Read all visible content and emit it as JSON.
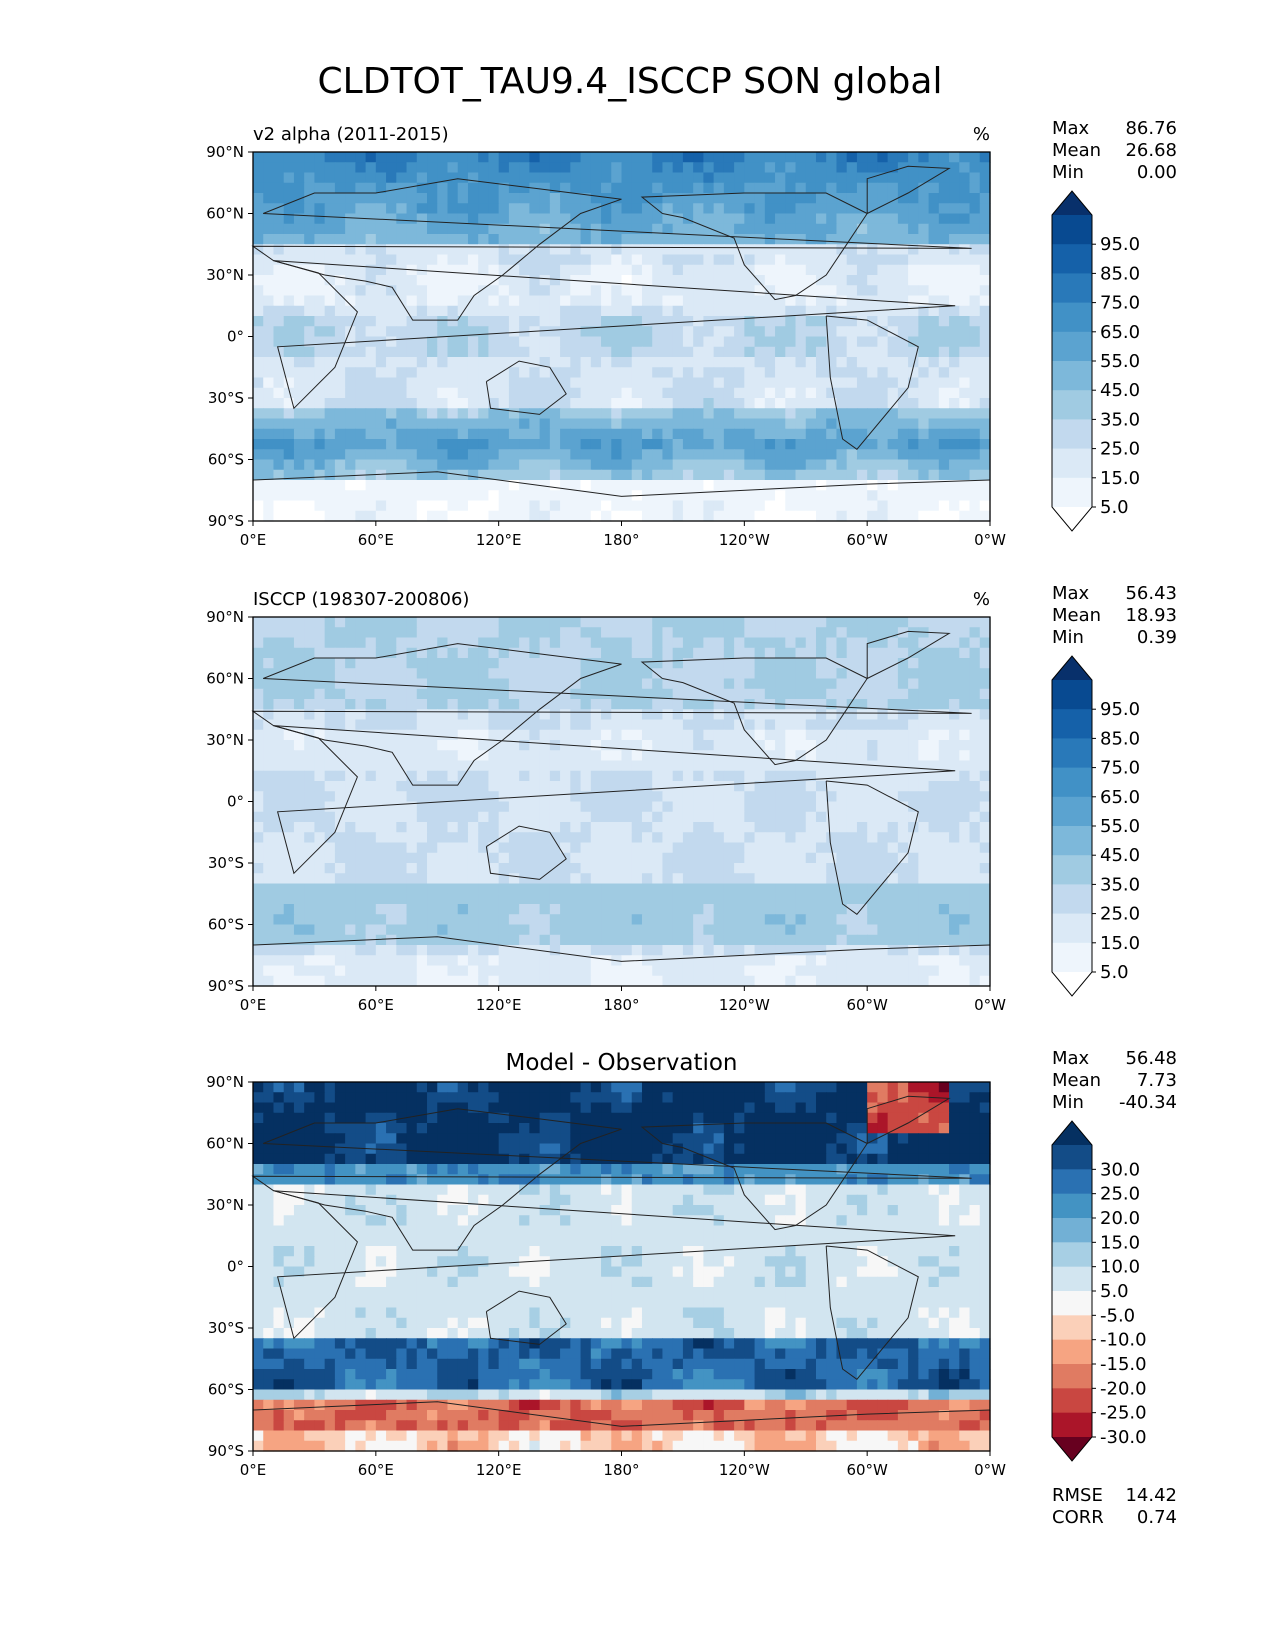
{
  "title": "CLDTOT_TAU9.4_ISCCP SON global",
  "chart_data": [
    {
      "type": "heatmap",
      "name": "model",
      "left_title": "v2 alpha (2011-2015)",
      "right_title": "%",
      "center_title": "",
      "x_ticks": [
        "0°E",
        "60°E",
        "120°E",
        "180°",
        "120°W",
        "60°W",
        "0°W"
      ],
      "y_ticks": [
        "90°N",
        "60°N",
        "30°N",
        "0°",
        "30°S",
        "60°S",
        "90°S"
      ],
      "xlim": [
        0,
        360
      ],
      "ylim": [
        -90,
        90
      ],
      "stats": [
        {
          "label": "Max",
          "value": "86.76"
        },
        {
          "label": "Mean",
          "value": "26.68"
        },
        {
          "label": "Min",
          "value": "0.00"
        }
      ],
      "colorbar": {
        "labels": [
          "95.0",
          "85.0",
          "75.0",
          "65.0",
          "55.0",
          "45.0",
          "35.0",
          "25.0",
          "15.0",
          "5.0"
        ],
        "colors": [
          "#08306b",
          "#084a91",
          "#1561a9",
          "#2979b9",
          "#4191c6",
          "#5ba3d0",
          "#7db8da",
          "#a0cbe2",
          "#c2d9ee",
          "#dbe9f6",
          "#eef5fc",
          "#ffffff"
        ],
        "extend": "both"
      },
      "bottom_stats": []
    },
    {
      "type": "heatmap",
      "name": "observation",
      "left_title": "ISCCP (198307-200806)",
      "right_title": "%",
      "center_title": "",
      "x_ticks": [
        "0°E",
        "60°E",
        "120°E",
        "180°",
        "120°W",
        "60°W",
        "0°W"
      ],
      "y_ticks": [
        "90°N",
        "60°N",
        "30°N",
        "0°",
        "30°S",
        "60°S",
        "90°S"
      ],
      "xlim": [
        0,
        360
      ],
      "ylim": [
        -90,
        90
      ],
      "stats": [
        {
          "label": "Max",
          "value": "56.43"
        },
        {
          "label": "Mean",
          "value": "18.93"
        },
        {
          "label": "Min",
          "value": "0.39"
        }
      ],
      "colorbar": {
        "labels": [
          "95.0",
          "85.0",
          "75.0",
          "65.0",
          "55.0",
          "45.0",
          "35.0",
          "25.0",
          "15.0",
          "5.0"
        ],
        "colors": [
          "#08306b",
          "#084a91",
          "#1561a9",
          "#2979b9",
          "#4191c6",
          "#5ba3d0",
          "#7db8da",
          "#a0cbe2",
          "#c2d9ee",
          "#dbe9f6",
          "#eef5fc",
          "#ffffff"
        ],
        "extend": "both"
      },
      "bottom_stats": []
    },
    {
      "type": "heatmap",
      "name": "difference",
      "left_title": "",
      "right_title": "",
      "center_title": "Model - Observation",
      "x_ticks": [
        "0°E",
        "60°E",
        "120°E",
        "180°",
        "120°W",
        "60°W",
        "0°W"
      ],
      "y_ticks": [
        "90°N",
        "60°N",
        "30°N",
        "0°",
        "30°S",
        "60°S",
        "90°S"
      ],
      "xlim": [
        0,
        360
      ],
      "ylim": [
        -90,
        90
      ],
      "stats": [
        {
          "label": "Max",
          "value": "56.48"
        },
        {
          "label": "Mean",
          "value": "7.73"
        },
        {
          "label": "Min",
          "value": "-40.34"
        }
      ],
      "colorbar": {
        "labels": [
          "30.0",
          "25.0",
          "20.0",
          "15.0",
          "10.0",
          "5.0",
          "-5.0",
          "-10.0",
          "-15.0",
          "-20.0",
          "-25.0",
          "-30.0"
        ],
        "colors": [
          "#053061",
          "#134c87",
          "#2a71b2",
          "#4393c3",
          "#72b0d5",
          "#a7cfe4",
          "#d2e5f0",
          "#f7f7f7",
          "#fbd0b9",
          "#f6a482",
          "#e07b62",
          "#c94741",
          "#ab1529",
          "#67001f"
        ],
        "extend": "both"
      },
      "bottom_stats": [
        {
          "label": "RMSE",
          "value": "14.42"
        },
        {
          "label": "CORR",
          "value": "0.74"
        }
      ]
    }
  ]
}
